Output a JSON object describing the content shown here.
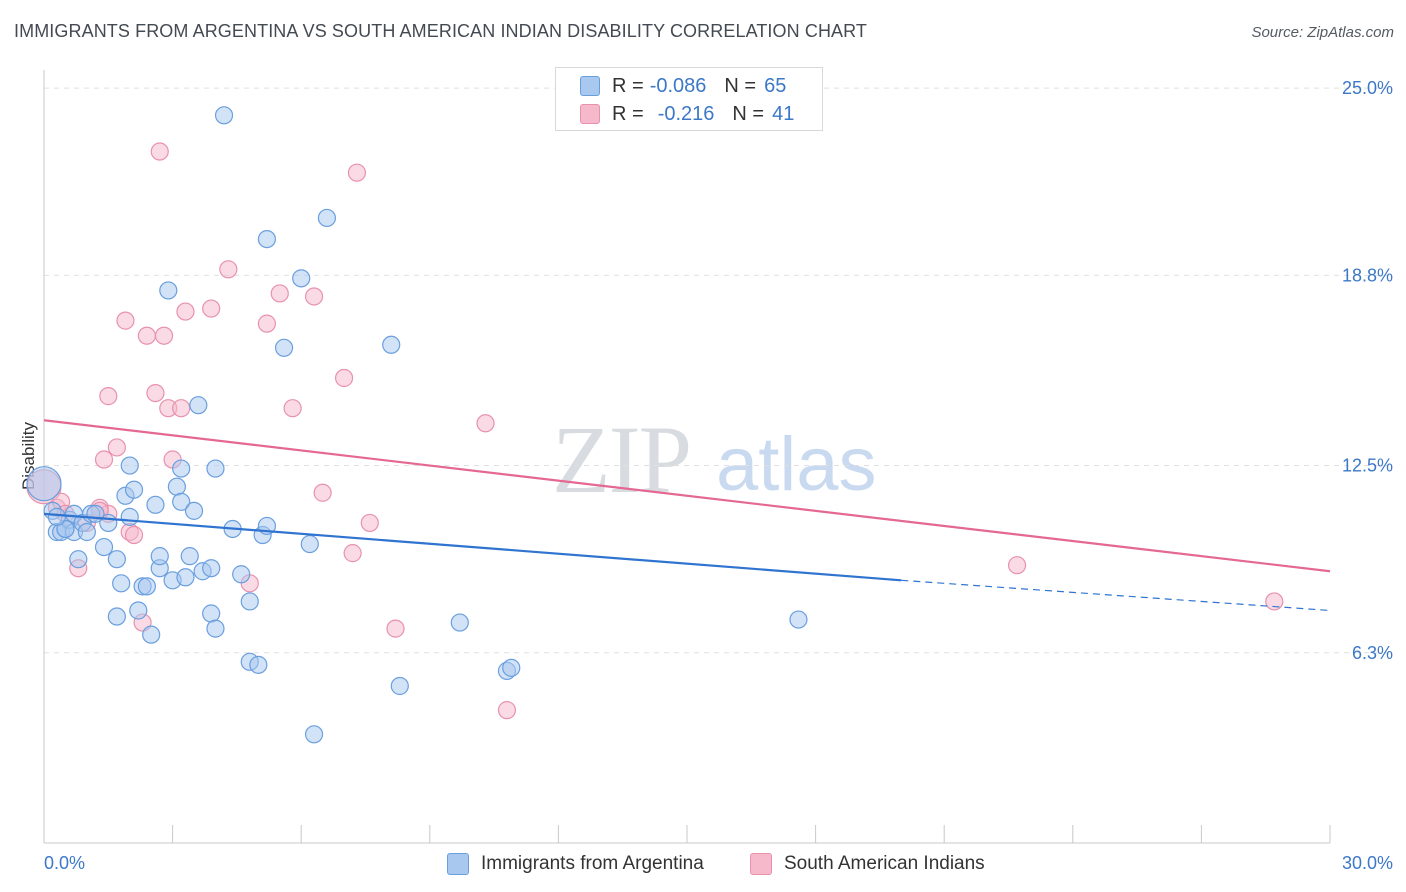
{
  "title": "IMMIGRANTS FROM ARGENTINA VS SOUTH AMERICAN INDIAN DISABILITY CORRELATION CHART",
  "source": "Source: ZipAtlas.com",
  "watermark": {
    "zip": "ZIP",
    "atlas": "atlas"
  },
  "legend": {
    "rows": [
      {
        "r_label": "R =",
        "r_value": "-0.086",
        "n_label": "N =",
        "n_value": "65",
        "color": "#a8c8f0"
      },
      {
        "r_label": "R =",
        "r_value": "-0.216",
        "n_label": "N =",
        "n_value": "41",
        "color": "#f6b8cb"
      }
    ]
  },
  "bottom_legend": [
    {
      "label": "Immigrants from Argentina",
      "color": "#a8c8f0"
    },
    {
      "label": "South American Indians",
      "color": "#f6b8cb"
    }
  ],
  "colors": {
    "blue_fill": "#a8c8f0",
    "blue_stroke": "#6a9fde",
    "blue_line": "#2f74d0",
    "pink_fill": "#f6b8cb",
    "pink_stroke": "#e892ad",
    "pink_line": "#e46891",
    "axis_label": "#3c78c8",
    "grid": "#e0e0e0"
  },
  "chart_data": {
    "type": "scatter",
    "title": "IMMIGRANTS FROM ARGENTINA VS SOUTH AMERICAN INDIAN DISABILITY CORRELATION CHART",
    "xlabel": "",
    "ylabel": "Disability",
    "xlim": [
      0,
      30
    ],
    "ylim": [
      0,
      25.6
    ],
    "x_tick_labels": [
      "0.0%",
      "30.0%"
    ],
    "y_ticks": [
      6.3,
      12.5,
      18.8,
      25.0
    ],
    "y_tick_labels": [
      "6.3%",
      "12.5%",
      "18.8%",
      "25.0%"
    ],
    "grid": "horizontal dashed",
    "legend_placement": "top-center",
    "series": [
      {
        "name": "Immigrants from Argentina",
        "color": "#a8c8f0",
        "trend": {
          "x": [
            0.0,
            20.0
          ],
          "y": [
            10.9,
            8.7
          ],
          "dashed_to": [
            30.0,
            7.7
          ]
        },
        "points": [
          [
            0.0,
            11.9
          ],
          [
            0.2,
            11.0
          ],
          [
            0.3,
            10.3
          ],
          [
            0.4,
            10.3
          ],
          [
            0.5,
            10.4
          ],
          [
            0.6,
            10.7
          ],
          [
            0.7,
            10.9
          ],
          [
            0.7,
            10.3
          ],
          [
            0.9,
            10.6
          ],
          [
            1.0,
            10.3
          ],
          [
            1.1,
            10.9
          ],
          [
            0.8,
            9.4
          ],
          [
            1.4,
            9.8
          ],
          [
            1.7,
            9.4
          ],
          [
            1.5,
            10.6
          ],
          [
            1.9,
            11.5
          ],
          [
            2.0,
            10.8
          ],
          [
            2.0,
            12.5
          ],
          [
            2.1,
            11.7
          ],
          [
            1.8,
            8.6
          ],
          [
            2.3,
            8.5
          ],
          [
            2.4,
            8.5
          ],
          [
            2.2,
            7.7
          ],
          [
            2.5,
            6.9
          ],
          [
            2.6,
            11.2
          ],
          [
            2.7,
            9.1
          ],
          [
            2.7,
            9.5
          ],
          [
            3.0,
            8.7
          ],
          [
            3.1,
            11.8
          ],
          [
            3.2,
            12.4
          ],
          [
            3.2,
            11.3
          ],
          [
            3.3,
            8.8
          ],
          [
            3.4,
            9.5
          ],
          [
            3.5,
            11.0
          ],
          [
            3.7,
            9.0
          ],
          [
            3.9,
            7.6
          ],
          [
            3.9,
            9.1
          ],
          [
            4.0,
            7.1
          ],
          [
            4.0,
            12.4
          ],
          [
            2.9,
            18.3
          ],
          [
            3.6,
            14.5
          ],
          [
            4.2,
            24.1
          ],
          [
            4.4,
            10.4
          ],
          [
            4.6,
            8.9
          ],
          [
            4.8,
            8.0
          ],
          [
            4.8,
            6.0
          ],
          [
            5.0,
            5.9
          ],
          [
            5.1,
            10.2
          ],
          [
            5.2,
            10.5
          ],
          [
            5.2,
            20.0
          ],
          [
            5.6,
            16.4
          ],
          [
            6.0,
            18.7
          ],
          [
            6.2,
            9.9
          ],
          [
            6.6,
            20.7
          ],
          [
            6.3,
            3.6
          ],
          [
            8.1,
            16.5
          ],
          [
            8.3,
            5.2
          ],
          [
            9.7,
            7.3
          ],
          [
            10.8,
            5.7
          ],
          [
            10.9,
            5.8
          ],
          [
            1.7,
            7.5
          ],
          [
            17.6,
            7.4
          ],
          [
            0.5,
            10.4
          ],
          [
            0.3,
            10.8
          ],
          [
            1.2,
            10.9
          ]
        ]
      },
      {
        "name": "South American Indians",
        "color": "#f6b8cb",
        "trend": {
          "x": [
            0.0,
            30.0
          ],
          "y": [
            14.0,
            9.0
          ]
        },
        "points": [
          [
            0.0,
            11.8
          ],
          [
            0.3,
            11.1
          ],
          [
            0.4,
            11.3
          ],
          [
            0.5,
            10.9
          ],
          [
            0.8,
            9.1
          ],
          [
            1.0,
            10.6
          ],
          [
            1.3,
            11.1
          ],
          [
            1.4,
            12.7
          ],
          [
            1.5,
            10.9
          ],
          [
            1.5,
            14.8
          ],
          [
            1.7,
            13.1
          ],
          [
            1.9,
            17.3
          ],
          [
            2.0,
            10.3
          ],
          [
            2.1,
            10.2
          ],
          [
            2.3,
            7.3
          ],
          [
            2.4,
            16.8
          ],
          [
            2.6,
            14.9
          ],
          [
            2.7,
            22.9
          ],
          [
            2.8,
            16.8
          ],
          [
            2.9,
            14.4
          ],
          [
            3.0,
            12.7
          ],
          [
            3.2,
            14.4
          ],
          [
            3.3,
            17.6
          ],
          [
            3.9,
            17.7
          ],
          [
            4.3,
            19.0
          ],
          [
            4.8,
            8.6
          ],
          [
            5.2,
            17.2
          ],
          [
            5.5,
            18.2
          ],
          [
            5.8,
            14.4
          ],
          [
            6.3,
            18.1
          ],
          [
            6.5,
            11.6
          ],
          [
            7.0,
            15.4
          ],
          [
            7.2,
            9.6
          ],
          [
            7.3,
            22.2
          ],
          [
            7.6,
            10.6
          ],
          [
            8.2,
            7.1
          ],
          [
            10.3,
            13.9
          ],
          [
            10.8,
            4.4
          ],
          [
            22.7,
            9.2
          ],
          [
            28.7,
            8.0
          ],
          [
            1.3,
            11.0
          ]
        ]
      }
    ]
  }
}
